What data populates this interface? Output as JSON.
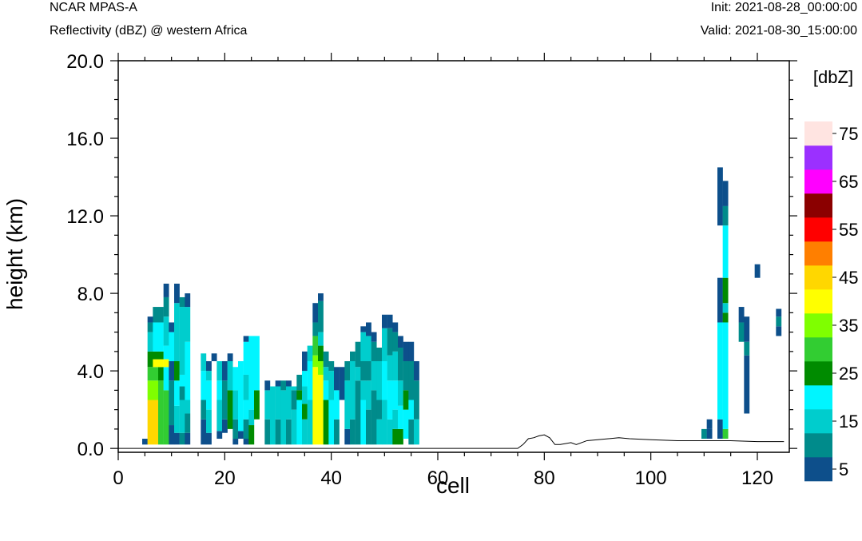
{
  "header": {
    "title": "NCAR MPAS-A",
    "subtitle": "Reflectivity (dBZ) @ western Africa",
    "init": "Init: 2021-08-28_00:00:00",
    "valid": "Valid: 2021-08-30_15:00:00"
  },
  "chart_data": {
    "type": "heatmap",
    "xlabel": "cell",
    "ylabel": "height (km)",
    "xlim": [
      0,
      126
    ],
    "ylim": [
      -0.2,
      20.0
    ],
    "x_ticks": [
      "0",
      "20",
      "40",
      "60",
      "80",
      "100",
      "120"
    ],
    "y_ticks": [
      "0.0",
      "4.0",
      "8.0",
      "12.0",
      "16.0",
      "20.0"
    ],
    "colorbar": {
      "unit_label": "[dbZ]",
      "levels_min": 5,
      "levels_max": 75,
      "step": 5,
      "colors": [
        "#0d4f8b",
        "#008b8b",
        "#00cdcd",
        "#00f5ff",
        "#008b00",
        "#32cd32",
        "#7fff00",
        "#ffff00",
        "#ffd700",
        "#ff7f00",
        "#ff0000",
        "#8b0000",
        "#ff00ff",
        "#9b30ff",
        "#ffe4e1"
      ],
      "tick_labels": [
        "5",
        "15",
        "25",
        "35",
        "45",
        "55",
        "65",
        "75"
      ]
    },
    "terrain": [
      [
        0,
        0.0
      ],
      [
        75,
        0.0
      ],
      [
        76,
        0.2
      ],
      [
        77,
        0.5
      ],
      [
        78,
        0.55
      ],
      [
        79,
        0.65
      ],
      [
        80,
        0.7
      ],
      [
        81,
        0.55
      ],
      [
        82,
        0.2
      ],
      [
        83,
        0.2
      ],
      [
        85,
        0.3
      ],
      [
        86,
        0.2
      ],
      [
        88,
        0.4
      ],
      [
        90,
        0.45
      ],
      [
        94,
        0.55
      ],
      [
        96,
        0.5
      ],
      [
        100,
        0.45
      ],
      [
        105,
        0.4
      ],
      [
        110,
        0.4
      ],
      [
        115,
        0.4
      ],
      [
        120,
        0.35
      ],
      [
        125,
        0.35
      ]
    ],
    "cells": [
      [
        5,
        0.2,
        0.5,
        5
      ],
      [
        6,
        0.2,
        2.5,
        45
      ],
      [
        6,
        2.5,
        3.5,
        35
      ],
      [
        6,
        3.5,
        4.2,
        30
      ],
      [
        6,
        4.2,
        5.0,
        25
      ],
      [
        6,
        5.0,
        6.0,
        15
      ],
      [
        6,
        6.0,
        6.5,
        10
      ],
      [
        6,
        6.5,
        6.8,
        5
      ],
      [
        7,
        0.2,
        2.5,
        45
      ],
      [
        7,
        2.5,
        3.5,
        35
      ],
      [
        7,
        3.5,
        4.2,
        30
      ],
      [
        7,
        4.2,
        4.6,
        40
      ],
      [
        7,
        4.6,
        5.0,
        25
      ],
      [
        7,
        5.0,
        6.5,
        20
      ],
      [
        7,
        6.5,
        7.3,
        10
      ],
      [
        8,
        0.2,
        3.5,
        30
      ],
      [
        8,
        3.5,
        4.2,
        25
      ],
      [
        8,
        4.2,
        4.6,
        40
      ],
      [
        8,
        4.6,
        5.0,
        25
      ],
      [
        8,
        5.0,
        6.5,
        20
      ],
      [
        8,
        6.5,
        7.3,
        10
      ],
      [
        9,
        0.2,
        3.0,
        30
      ],
      [
        9,
        3.0,
        4.2,
        20
      ],
      [
        9,
        4.2,
        4.6,
        40
      ],
      [
        9,
        4.6,
        5.3,
        20
      ],
      [
        9,
        5.3,
        6.8,
        15
      ],
      [
        9,
        6.8,
        7.8,
        10
      ],
      [
        9,
        7.8,
        8.5,
        5
      ],
      [
        10,
        0.2,
        1.2,
        5
      ],
      [
        10,
        1.2,
        3.5,
        10
      ],
      [
        10,
        3.5,
        4.5,
        5
      ],
      [
        10,
        4.5,
        6.0,
        20
      ],
      [
        10,
        6.0,
        6.5,
        5
      ],
      [
        11,
        0.2,
        0.8,
        5
      ],
      [
        11,
        0.8,
        2.2,
        15
      ],
      [
        11,
        2.2,
        3.5,
        20
      ],
      [
        11,
        3.5,
        4.5,
        25
      ],
      [
        11,
        4.5,
        7.5,
        15
      ],
      [
        11,
        7.5,
        8.5,
        5
      ],
      [
        12,
        0.2,
        0.8,
        10
      ],
      [
        12,
        0.8,
        2.5,
        15
      ],
      [
        12,
        2.5,
        3.2,
        10
      ],
      [
        12,
        3.2,
        3.8,
        20
      ],
      [
        12,
        3.8,
        7.3,
        15
      ],
      [
        12,
        7.3,
        7.8,
        10
      ],
      [
        13,
        0.2,
        0.8,
        5
      ],
      [
        13,
        0.8,
        1.8,
        10
      ],
      [
        13,
        1.8,
        2.5,
        15
      ],
      [
        13,
        2.5,
        5.5,
        20
      ],
      [
        13,
        5.5,
        7.3,
        15
      ],
      [
        13,
        7.3,
        8.0,
        5
      ],
      [
        16,
        0.2,
        1.5,
        5
      ],
      [
        16,
        1.5,
        2.5,
        10
      ],
      [
        16,
        2.5,
        4.0,
        20
      ],
      [
        16,
        4.0,
        4.9,
        15
      ],
      [
        17,
        0.2,
        0.8,
        5
      ],
      [
        17,
        0.8,
        2.0,
        15
      ],
      [
        17,
        2.0,
        3.5,
        20
      ],
      [
        17,
        3.5,
        4.0,
        15
      ],
      [
        17,
        4.0,
        4.5,
        5
      ],
      [
        18,
        4.5,
        4.9,
        5
      ],
      [
        19,
        0.5,
        0.9,
        5
      ],
      [
        19,
        0.9,
        2.5,
        15
      ],
      [
        19,
        2.5,
        3.5,
        20
      ],
      [
        19,
        3.5,
        4.5,
        15
      ],
      [
        20,
        0.8,
        1.5,
        5
      ],
      [
        20,
        1.5,
        3.5,
        10
      ],
      [
        20,
        3.5,
        4.5,
        5
      ],
      [
        21,
        1.0,
        3.0,
        25
      ],
      [
        21,
        3.0,
        4.5,
        15
      ],
      [
        21,
        4.5,
        4.9,
        5
      ],
      [
        22,
        0.2,
        0.5,
        5
      ],
      [
        22,
        0.5,
        1.5,
        10
      ],
      [
        22,
        1.5,
        3.0,
        15
      ],
      [
        22,
        3.0,
        4.2,
        20
      ],
      [
        23,
        0.5,
        0.9,
        5
      ],
      [
        23,
        0.9,
        4.5,
        20
      ],
      [
        24,
        0.2,
        0.5,
        5
      ],
      [
        24,
        0.5,
        1.5,
        10
      ],
      [
        24,
        1.5,
        2.5,
        20
      ],
      [
        24,
        2.5,
        3.8,
        15
      ],
      [
        24,
        3.8,
        5.5,
        20
      ],
      [
        24,
        5.5,
        5.8,
        5
      ],
      [
        25,
        0.2,
        1.2,
        25
      ],
      [
        25,
        1.2,
        2.0,
        15
      ],
      [
        25,
        2.0,
        5.8,
        20
      ],
      [
        26,
        1.5,
        3.0,
        25
      ],
      [
        26,
        3.0,
        5.8,
        20
      ],
      [
        28,
        0.2,
        1.5,
        10
      ],
      [
        28,
        1.5,
        3.0,
        15
      ],
      [
        28,
        3.0,
        3.5,
        5
      ],
      [
        29,
        0.2,
        3.2,
        15
      ],
      [
        30,
        0.2,
        1.5,
        10
      ],
      [
        30,
        1.5,
        3.2,
        15
      ],
      [
        30,
        3.2,
        3.5,
        5
      ],
      [
        31,
        0.2,
        3.0,
        15
      ],
      [
        31,
        3.0,
        3.5,
        10
      ],
      [
        32,
        0.2,
        1.5,
        10
      ],
      [
        32,
        1.5,
        3.2,
        15
      ],
      [
        32,
        3.2,
        3.5,
        5
      ],
      [
        33,
        0.2,
        2.0,
        15
      ],
      [
        33,
        2.0,
        3.0,
        10
      ],
      [
        33,
        3.0,
        3.2,
        15
      ],
      [
        34,
        0.2,
        2.5,
        20
      ],
      [
        34,
        2.5,
        3.0,
        25
      ],
      [
        34,
        3.0,
        3.8,
        10
      ],
      [
        35,
        0.2,
        1.5,
        15
      ],
      [
        35,
        1.5,
        2.3,
        25
      ],
      [
        35,
        2.3,
        3.2,
        15
      ],
      [
        35,
        3.2,
        4.0,
        20
      ],
      [
        35,
        4.0,
        5.0,
        5
      ],
      [
        36,
        0.2,
        2.5,
        15
      ],
      [
        36,
        2.5,
        4.5,
        20
      ],
      [
        36,
        4.5,
        5.3,
        15
      ],
      [
        37,
        0.2,
        4.2,
        40
      ],
      [
        37,
        4.2,
        4.8,
        35
      ],
      [
        37,
        4.8,
        5.8,
        30
      ],
      [
        37,
        5.8,
        6.5,
        10
      ],
      [
        37,
        6.5,
        7.5,
        5
      ],
      [
        38,
        0.2,
        3.8,
        40
      ],
      [
        38,
        3.8,
        4.5,
        35
      ],
      [
        38,
        4.5,
        5.3,
        25
      ],
      [
        38,
        5.3,
        6.0,
        15
      ],
      [
        38,
        6.0,
        7.6,
        10
      ],
      [
        38,
        7.6,
        8.0,
        5
      ],
      [
        39,
        0.2,
        2.5,
        25
      ],
      [
        39,
        2.5,
        3.5,
        20
      ],
      [
        39,
        3.5,
        4.2,
        15
      ],
      [
        39,
        4.2,
        5.0,
        10
      ],
      [
        40,
        0.2,
        2.5,
        20
      ],
      [
        40,
        2.5,
        4.0,
        15
      ],
      [
        40,
        4.0,
        4.5,
        10
      ],
      [
        41,
        0.2,
        1.5,
        10
      ],
      [
        41,
        1.5,
        3.0,
        20
      ],
      [
        41,
        3.0,
        4.2,
        5
      ],
      [
        42,
        2.5,
        4.2,
        5
      ],
      [
        43,
        0.2,
        1.0,
        5
      ],
      [
        43,
        1.0,
        3.5,
        15
      ],
      [
        43,
        3.5,
        4.5,
        10
      ],
      [
        44,
        0.2,
        1.5,
        10
      ],
      [
        44,
        1.5,
        4.5,
        15
      ],
      [
        44,
        4.5,
        5.0,
        10
      ],
      [
        45,
        0.2,
        3.5,
        10
      ],
      [
        45,
        3.5,
        4.2,
        15
      ],
      [
        45,
        4.2,
        5.5,
        10
      ],
      [
        46,
        0.2,
        2.5,
        20
      ],
      [
        46,
        2.5,
        3.5,
        15
      ],
      [
        46,
        3.5,
        4.5,
        10
      ],
      [
        46,
        4.5,
        6.0,
        15
      ],
      [
        46,
        6.0,
        6.3,
        5
      ],
      [
        47,
        0.2,
        2.0,
        10
      ],
      [
        47,
        2.0,
        3.5,
        15
      ],
      [
        47,
        3.5,
        4.5,
        10
      ],
      [
        47,
        4.5,
        5.8,
        15
      ],
      [
        47,
        5.8,
        6.5,
        5
      ],
      [
        48,
        0.2,
        3.0,
        10
      ],
      [
        48,
        3.0,
        4.5,
        15
      ],
      [
        48,
        4.5,
        5.5,
        10
      ],
      [
        48,
        5.5,
        6.0,
        5
      ],
      [
        49,
        0.2,
        1.5,
        15
      ],
      [
        49,
        1.5,
        2.5,
        10
      ],
      [
        49,
        2.5,
        4.5,
        15
      ],
      [
        49,
        4.5,
        5.2,
        10
      ],
      [
        50,
        0.2,
        2.5,
        15
      ],
      [
        50,
        2.5,
        4.5,
        20
      ],
      [
        50,
        4.5,
        6.2,
        15
      ],
      [
        50,
        6.2,
        6.9,
        5
      ],
      [
        51,
        0.2,
        1.5,
        15
      ],
      [
        51,
        1.5,
        3.5,
        20
      ],
      [
        51,
        3.5,
        4.8,
        15
      ],
      [
        51,
        4.8,
        6.2,
        10
      ],
      [
        51,
        6.2,
        6.9,
        5
      ],
      [
        52,
        0.2,
        1.0,
        25
      ],
      [
        52,
        1.0,
        2.0,
        15
      ],
      [
        52,
        2.0,
        3.5,
        20
      ],
      [
        52,
        3.5,
        5.0,
        15
      ],
      [
        52,
        5.0,
        6.0,
        10
      ],
      [
        52,
        6.0,
        6.5,
        5
      ],
      [
        53,
        0.2,
        1.0,
        25
      ],
      [
        53,
        1.0,
        2.2,
        20
      ],
      [
        53,
        2.2,
        3.5,
        15
      ],
      [
        53,
        3.5,
        5.2,
        10
      ],
      [
        53,
        5.2,
        5.8,
        5
      ],
      [
        54,
        0.5,
        2.0,
        20
      ],
      [
        54,
        2.0,
        3.0,
        25
      ],
      [
        54,
        3.0,
        4.5,
        10
      ],
      [
        54,
        4.5,
        5.5,
        5
      ],
      [
        55,
        0.2,
        1.5,
        10
      ],
      [
        55,
        1.5,
        2.5,
        20
      ],
      [
        55,
        2.5,
        4.5,
        10
      ],
      [
        55,
        4.5,
        5.5,
        5
      ],
      [
        56,
        0.2,
        1.5,
        15
      ],
      [
        56,
        1.5,
        3.5,
        10
      ],
      [
        56,
        3.5,
        4.5,
        5
      ],
      [
        110,
        0.5,
        1.0,
        10
      ],
      [
        111,
        0.5,
        1.0,
        5
      ],
      [
        111,
        1.0,
        1.5,
        5
      ],
      [
        113,
        0.5,
        1.5,
        5
      ],
      [
        113,
        1.5,
        6.5,
        20
      ],
      [
        113,
        6.5,
        8.8,
        5
      ],
      [
        113,
        11.5,
        14.5,
        5
      ],
      [
        114,
        0.5,
        1.0,
        30
      ],
      [
        114,
        1.0,
        6.5,
        20
      ],
      [
        114,
        6.5,
        7.0,
        25
      ],
      [
        114,
        7.0,
        7.5,
        15
      ],
      [
        114,
        7.5,
        8.8,
        25
      ],
      [
        114,
        8.8,
        11.5,
        20
      ],
      [
        114,
        11.5,
        12.5,
        10
      ],
      [
        114,
        12.5,
        13.8,
        5
      ],
      [
        117,
        5.5,
        6.5,
        10
      ],
      [
        117,
        6.5,
        7.3,
        5
      ],
      [
        118,
        1.8,
        4.8,
        5
      ],
      [
        118,
        4.8,
        5.5,
        10
      ],
      [
        118,
        5.5,
        6.8,
        5
      ],
      [
        120,
        8.8,
        9.5,
        5
      ],
      [
        124,
        5.8,
        6.3,
        5
      ],
      [
        124,
        6.3,
        6.8,
        10
      ],
      [
        124,
        6.8,
        7.2,
        5
      ]
    ]
  }
}
